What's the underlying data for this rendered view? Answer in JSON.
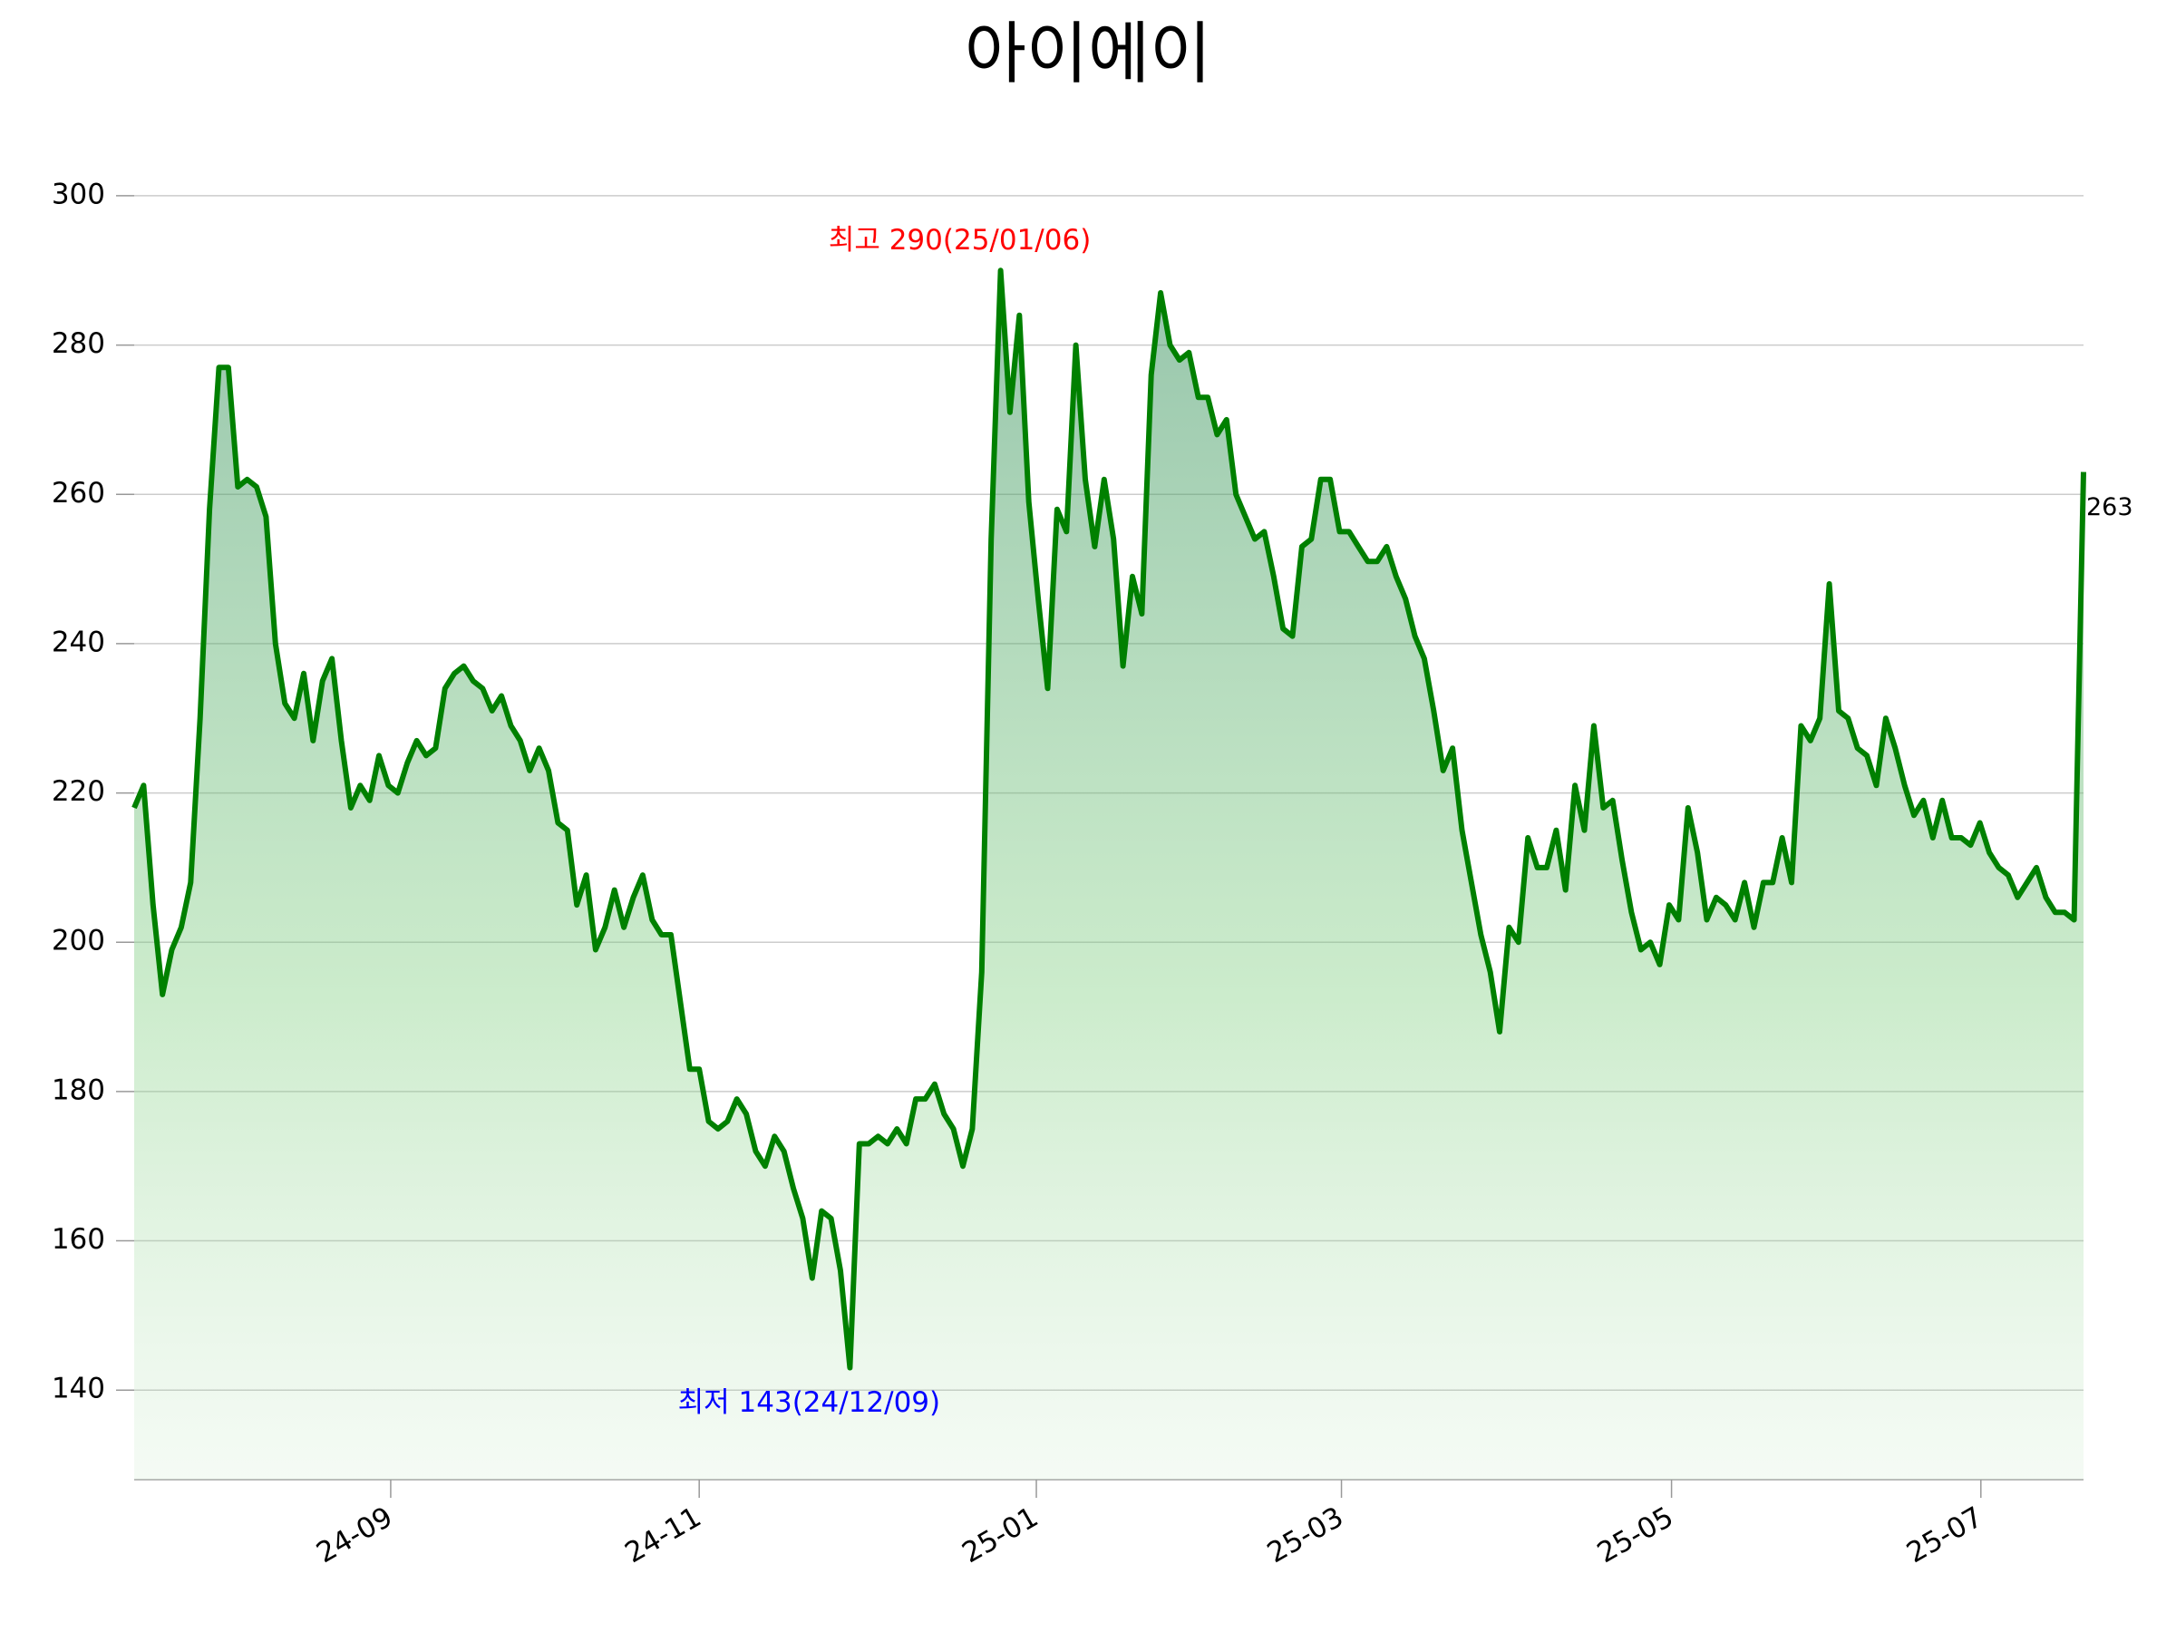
{
  "chart_data": {
    "type": "line",
    "title": "아이에이",
    "values": [
      218,
      221,
      205,
      193,
      199,
      202,
      208,
      230,
      258,
      277,
      277,
      261,
      262,
      261,
      257,
      240,
      232,
      230,
      236,
      227,
      235,
      238,
      227,
      218,
      221,
      219,
      225,
      221,
      220,
      224,
      227,
      225,
      226,
      234,
      236,
      237,
      235,
      234,
      231,
      233,
      229,
      227,
      223,
      226,
      223,
      216,
      215,
      205,
      209,
      199,
      202,
      207,
      202,
      206,
      209,
      203,
      201,
      201,
      192,
      183,
      183,
      176,
      175,
      176,
      179,
      177,
      172,
      170,
      174,
      172,
      167,
      163,
      155,
      164,
      163,
      156,
      143,
      173,
      173,
      174,
      173,
      175,
      173,
      179,
      179,
      181,
      177,
      175,
      170,
      175,
      196,
      254,
      290,
      271,
      284,
      259,
      246,
      234,
      258,
      255,
      280,
      262,
      253,
      262,
      254,
      237,
      249,
      244,
      276,
      287,
      280,
      278,
      279,
      273,
      273,
      268,
      270,
      260,
      257,
      254,
      255,
      249,
      242,
      241,
      253,
      254,
      262,
      262,
      255,
      255,
      253,
      251,
      251,
      253,
      249,
      246,
      241,
      238,
      231,
      223,
      226,
      215,
      208,
      201,
      196,
      188,
      202,
      200,
      214,
      210,
      210,
      215,
      207,
      221,
      215,
      229,
      218,
      219,
      211,
      204,
      199,
      200,
      197,
      205,
      203,
      218,
      212,
      203,
      206,
      205,
      203,
      208,
      202,
      208,
      208,
      214,
      208,
      229,
      227,
      230,
      248,
      231,
      230,
      226,
      225,
      221,
      230,
      226,
      221,
      217,
      219,
      214,
      219,
      214,
      214,
      213,
      216,
      212,
      210,
      209,
      206,
      208,
      210,
      206,
      204,
      204,
      203,
      263
    ],
    "color": "#008000",
    "xlim": [
      0,
      207
    ],
    "xticks": [
      {
        "value": 27.24,
        "label": "24-09"
      },
      {
        "value": 60,
        "label": "24-11"
      },
      {
        "value": 95.8,
        "label": "25-01"
      },
      {
        "value": 128.2,
        "label": "25-03"
      },
      {
        "value": 163.25,
        "label": "25-05"
      },
      {
        "value": 196.1,
        "label": "25-07"
      }
    ],
    "ylim": [
      128,
      304
    ],
    "yticks": [
      140,
      160,
      180,
      200,
      220,
      240,
      260,
      280,
      300
    ],
    "grid": true,
    "annotations": [
      {
        "text": "최고 290(25/01/06)",
        "color": "#ff0000"
      },
      {
        "text": "최저 143(24/12/09)",
        "color": "#0000ff"
      }
    ]
  }
}
